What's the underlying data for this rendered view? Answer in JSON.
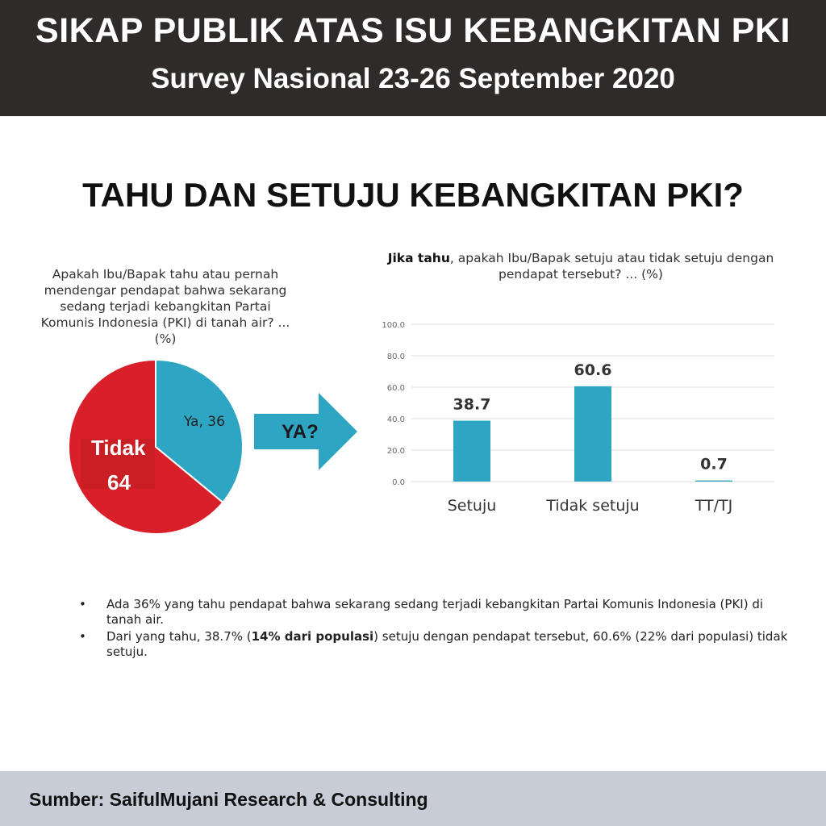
{
  "header": {
    "title": "SIKAP PUBLIK ATAS ISU KEBANGKITAN PKI",
    "subtitle": "Survey Nasional 23-26 September 2020"
  },
  "main_title": "TAHU DAN SETUJU KEBANGKITAN PKI?",
  "pie_question": "Apakah Ibu/Bapak tahu atau pernah mendengar pendapat bahwa sekarang sedang terjadi kebangkitan Partai Komunis Indonesia (PKI) di tanah air? ... (%)",
  "bar_question": {
    "bold": "Jika tahu",
    "rest": ", apakah Ibu/Bapak setuju atau tidak setuju dengan pendapat tersebut? ... (%)"
  },
  "arrow_label": "YA?",
  "colors": {
    "header_bg": "#2e2b2a",
    "pie_red": "#d9202a",
    "pie_blue": "#2ea6c3",
    "bar_blue": "#2ea6c3",
    "footer_bg": "#c8ccd6"
  },
  "chart_data": [
    {
      "type": "pie",
      "slices": [
        {
          "label": "Ya",
          "value": 36,
          "text": "Ya, 36",
          "color": "#2ea6c3"
        },
        {
          "label": "Tidak",
          "value": 64,
          "text_line1": "Tidak",
          "text_line2": "64",
          "color": "#d9202a"
        }
      ]
    },
    {
      "type": "bar",
      "categories": [
        "Setuju",
        "Tidak setuju",
        "TT/TJ"
      ],
      "values": [
        38.7,
        60.6,
        0.7
      ],
      "value_labels": [
        "38.7",
        "60.6",
        "0.7"
      ],
      "yticks": [
        "0.0",
        "20.0",
        "40.0",
        "60.0",
        "80.0",
        "100.0"
      ],
      "ylim": [
        0,
        100
      ],
      "grid": true
    }
  ],
  "bullets": [
    {
      "text": "Ada 36% yang tahu pendapat bahwa sekarang sedang terjadi kebangkitan Partai Komunis Indonesia (PKI) di tanah air."
    },
    {
      "pre": "Dari yang tahu, 38.7% (",
      "bold": "14% dari populasi",
      "post": ") setuju dengan pendapat tersebut, 60.6% (22% dari populasi) tidak setuju."
    }
  ],
  "footer": {
    "source": "Sumber: SaifulMujani Research & Consulting"
  }
}
